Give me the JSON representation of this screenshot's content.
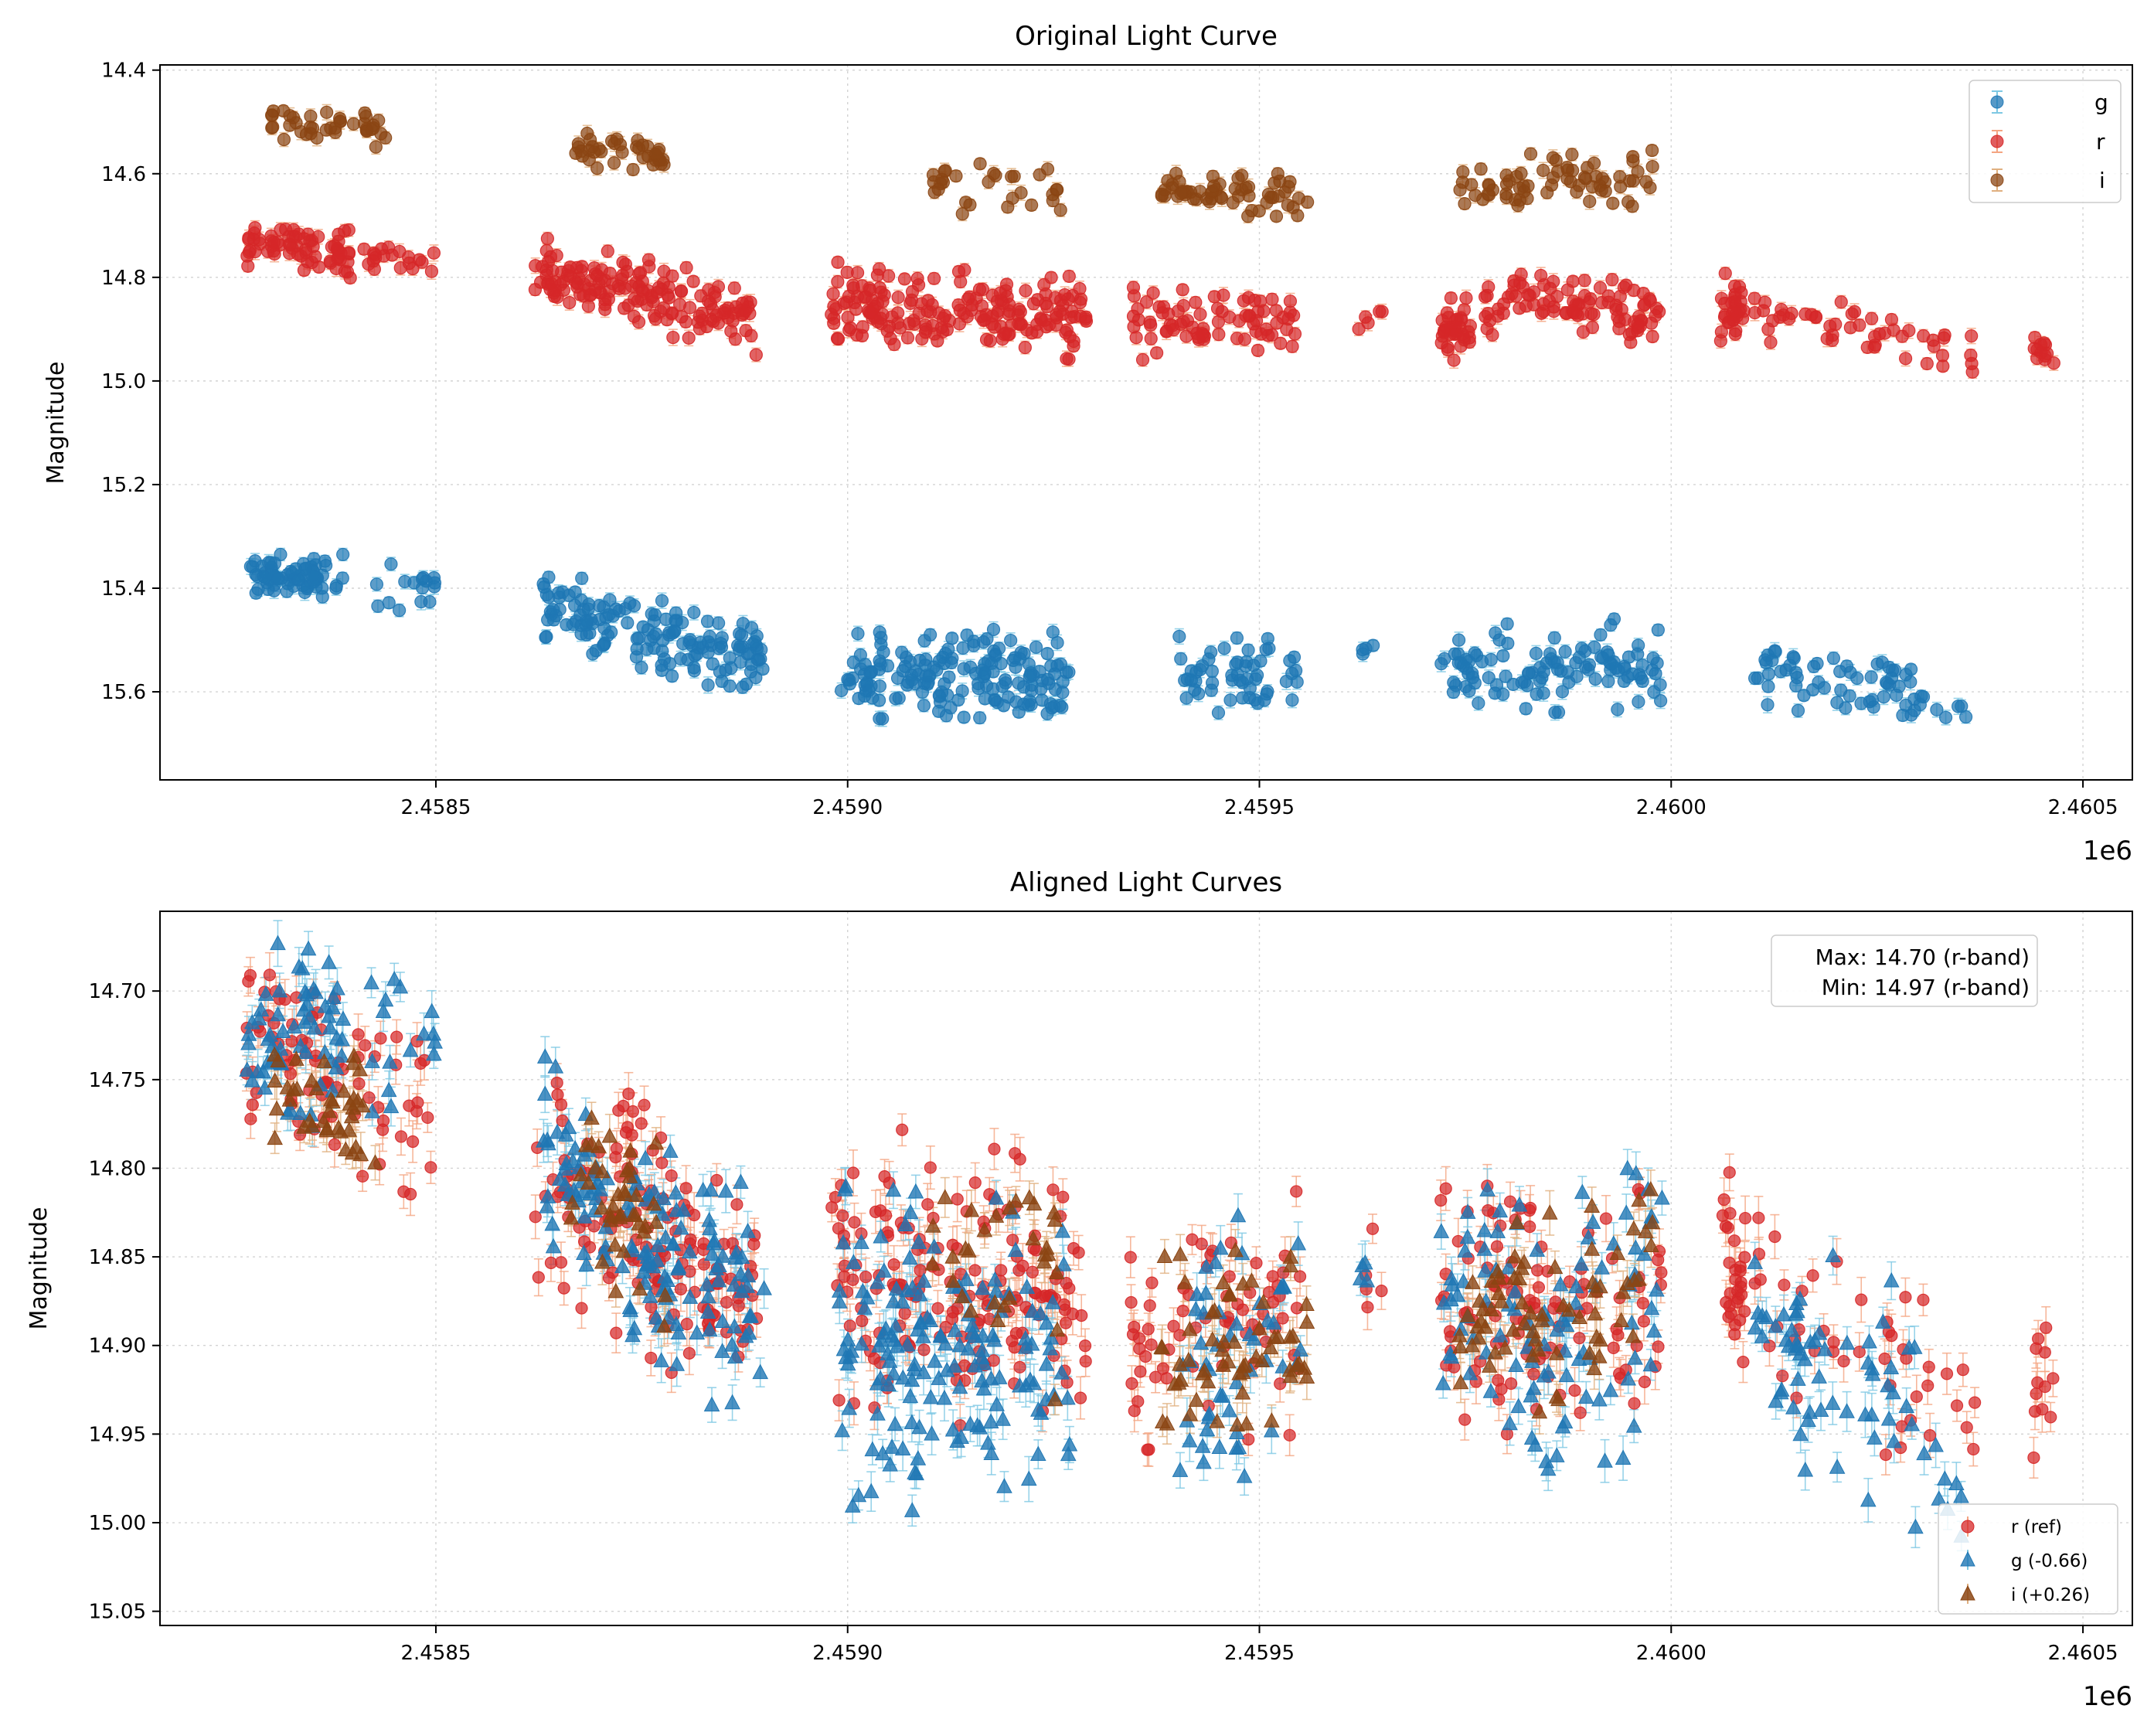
{
  "chart_data": [
    {
      "type": "scatter",
      "title": "Original Light Curve",
      "xlabel": "",
      "ylabel": "Magnitude",
      "x_offset_label": "1e6",
      "xlim": [
        2458165,
        2460560
      ],
      "ylim": [
        15.77,
        14.39
      ],
      "y_inverted": true,
      "x_ticks": [
        2458500,
        2459000,
        2459500,
        2460000,
        2460500
      ],
      "x_tick_labels": [
        "2.4585",
        "2.4590",
        "2.4595",
        "2.4600",
        "2.4605"
      ],
      "y_ticks": [
        14.4,
        14.6,
        14.8,
        15.0,
        15.2,
        15.4,
        15.6
      ],
      "y_tick_labels": [
        "14.4",
        "14.6",
        "14.8",
        "15.0",
        "15.2",
        "15.4",
        "15.6"
      ],
      "grid": true,
      "legend_position": "top-right",
      "legend": [
        "g",
        "r",
        "i"
      ],
      "series": [
        {
          "name": "g",
          "color": "#1f77b4",
          "marker": "circle",
          "segments": [
            {
              "x_start": 2458270,
              "x_end": 2458390,
              "y_start": 15.38,
              "y_end": 15.38,
              "spread": 0.045,
              "n": 70
            },
            {
              "x_start": 2458420,
              "x_end": 2458500,
              "y_start": 15.39,
              "y_end": 15.4,
              "spread": 0.05,
              "n": 16
            },
            {
              "x_start": 2458630,
              "x_end": 2458900,
              "y_start": 15.43,
              "y_end": 15.55,
              "spread": 0.07,
              "n": 150
            },
            {
              "x_start": 2458990,
              "x_end": 2459270,
              "y_start": 15.56,
              "y_end": 15.57,
              "spread": 0.09,
              "n": 170
            },
            {
              "x_start": 2459400,
              "x_end": 2459550,
              "y_start": 15.57,
              "y_end": 15.56,
              "spread": 0.08,
              "n": 55
            },
            {
              "x_start": 2459620,
              "x_end": 2459640,
              "y_start": 15.51,
              "y_end": 15.52,
              "spread": 0.03,
              "n": 4
            },
            {
              "x_start": 2459720,
              "x_end": 2459990,
              "y_start": 15.56,
              "y_end": 15.54,
              "spread": 0.09,
              "n": 110
            },
            {
              "x_start": 2460100,
              "x_end": 2460300,
              "y_start": 15.56,
              "y_end": 15.6,
              "spread": 0.07,
              "n": 60
            },
            {
              "x_start": 2460300,
              "x_end": 2460360,
              "y_start": 15.62,
              "y_end": 15.65,
              "spread": 0.04,
              "n": 8
            }
          ]
        },
        {
          "name": "r",
          "color": "#d62728",
          "marker": "circle",
          "segments": [
            {
              "x_start": 2458270,
              "x_end": 2458400,
              "y_start": 14.73,
              "y_end": 14.76,
              "spread": 0.05,
              "n": 70
            },
            {
              "x_start": 2458410,
              "x_end": 2458500,
              "y_start": 14.76,
              "y_end": 14.78,
              "spread": 0.04,
              "n": 20
            },
            {
              "x_start": 2458620,
              "x_end": 2458890,
              "y_start": 14.79,
              "y_end": 14.88,
              "spread": 0.07,
              "n": 160
            },
            {
              "x_start": 2458980,
              "x_end": 2459290,
              "y_start": 14.85,
              "y_end": 14.88,
              "spread": 0.08,
              "n": 190
            },
            {
              "x_start": 2459340,
              "x_end": 2459550,
              "y_start": 14.89,
              "y_end": 14.88,
              "spread": 0.07,
              "n": 80
            },
            {
              "x_start": 2459620,
              "x_end": 2459650,
              "y_start": 14.87,
              "y_end": 14.86,
              "spread": 0.03,
              "n": 5
            },
            {
              "x_start": 2459720,
              "x_end": 2459760,
              "y_start": 14.9,
              "y_end": 14.9,
              "spread": 0.06,
              "n": 35
            },
            {
              "x_start": 2459770,
              "x_end": 2459990,
              "y_start": 14.85,
              "y_end": 14.87,
              "spread": 0.06,
              "n": 95
            },
            {
              "x_start": 2460060,
              "x_end": 2460090,
              "y_start": 14.86,
              "y_end": 14.86,
              "spread": 0.07,
              "n": 30
            },
            {
              "x_start": 2460100,
              "x_end": 2460370,
              "y_start": 14.87,
              "y_end": 14.94,
              "spread": 0.05,
              "n": 50
            },
            {
              "x_start": 2460440,
              "x_end": 2460465,
              "y_start": 14.93,
              "y_end": 14.93,
              "spread": 0.04,
              "n": 12
            }
          ]
        },
        {
          "name": "i",
          "color": "#8b4513",
          "marker": "circle",
          "segments": [
            {
              "x_start": 2458300,
              "x_end": 2458440,
              "y_start": 14.5,
              "y_end": 14.52,
              "spread": 0.04,
              "n": 40
            },
            {
              "x_start": 2458660,
              "x_end": 2458780,
              "y_start": 14.54,
              "y_end": 14.58,
              "spread": 0.05,
              "n": 40
            },
            {
              "x_start": 2459100,
              "x_end": 2459260,
              "y_start": 14.61,
              "y_end": 14.6,
              "spread": 0.07,
              "n": 30
            },
            {
              "x_start": 2459380,
              "x_end": 2459560,
              "y_start": 14.64,
              "y_end": 14.63,
              "spread": 0.05,
              "n": 60
            },
            {
              "x_start": 2459740,
              "x_end": 2459980,
              "y_start": 14.63,
              "y_end": 14.6,
              "spread": 0.06,
              "n": 70
            }
          ]
        }
      ]
    },
    {
      "type": "scatter",
      "title": "Aligned Light Curves",
      "xlabel": "",
      "ylabel": "Magnitude",
      "x_offset_label": "1e6",
      "xlim": [
        2458165,
        2460560
      ],
      "ylim": [
        15.058,
        14.655
      ],
      "y_inverted": true,
      "x_ticks": [
        2458500,
        2459000,
        2459500,
        2460000,
        2460500
      ],
      "x_tick_labels": [
        "2.4585",
        "2.4590",
        "2.4595",
        "2.4600",
        "2.4605"
      ],
      "y_ticks": [
        14.7,
        14.75,
        14.8,
        14.85,
        14.9,
        14.95,
        15.0,
        15.05
      ],
      "y_tick_labels": [
        "14.70",
        "14.75",
        "14.80",
        "14.85",
        "14.90",
        "14.95",
        "15.00",
        "15.05"
      ],
      "grid": true,
      "legend_position": "bottom-right",
      "legend": [
        "r (ref)",
        "g (-0.66)",
        "i (+0.26)"
      ],
      "annotation": {
        "position": "top-right",
        "line1": "Max: 14.70 (r-band)",
        "line2": "Min: 14.97 (r-band)"
      },
      "series": [
        {
          "name": "r (ref)",
          "color": "#d62728",
          "err_color": "#f4a582",
          "marker": "circle",
          "segments": [
            {
              "x_start": 2458270,
              "x_end": 2458500,
              "y_start": 14.73,
              "y_end": 14.77,
              "spread": 0.05,
              "n": 80
            },
            {
              "x_start": 2458620,
              "x_end": 2458890,
              "y_start": 14.79,
              "y_end": 14.88,
              "spread": 0.07,
              "n": 150
            },
            {
              "x_start": 2458980,
              "x_end": 2459290,
              "y_start": 14.85,
              "y_end": 14.88,
              "spread": 0.08,
              "n": 170
            },
            {
              "x_start": 2459340,
              "x_end": 2459550,
              "y_start": 14.89,
              "y_end": 14.88,
              "spread": 0.07,
              "n": 70
            },
            {
              "x_start": 2459620,
              "x_end": 2459650,
              "y_start": 14.87,
              "y_end": 14.86,
              "spread": 0.03,
              "n": 5
            },
            {
              "x_start": 2459720,
              "x_end": 2459990,
              "y_start": 14.88,
              "y_end": 14.88,
              "spread": 0.07,
              "n": 110
            },
            {
              "x_start": 2460060,
              "x_end": 2460090,
              "y_start": 14.86,
              "y_end": 14.86,
              "spread": 0.07,
              "n": 30
            },
            {
              "x_start": 2460100,
              "x_end": 2460370,
              "y_start": 14.87,
              "y_end": 14.94,
              "spread": 0.05,
              "n": 45
            },
            {
              "x_start": 2460440,
              "x_end": 2460465,
              "y_start": 14.93,
              "y_end": 14.93,
              "spread": 0.04,
              "n": 12
            }
          ]
        },
        {
          "name": "g (-0.66)",
          "color": "#1f77b4",
          "err_color": "#7ec8e3",
          "marker": "triangle",
          "segments": [
            {
              "x_start": 2458270,
              "x_end": 2458390,
              "y_start": 14.72,
              "y_end": 14.73,
              "spread": 0.05,
              "n": 60
            },
            {
              "x_start": 2458420,
              "x_end": 2458500,
              "y_start": 14.73,
              "y_end": 14.74,
              "spread": 0.06,
              "n": 16
            },
            {
              "x_start": 2458630,
              "x_end": 2458900,
              "y_start": 14.78,
              "y_end": 14.89,
              "spread": 0.07,
              "n": 140
            },
            {
              "x_start": 2458990,
              "x_end": 2459270,
              "y_start": 14.9,
              "y_end": 14.91,
              "spread": 0.09,
              "n": 160
            },
            {
              "x_start": 2459400,
              "x_end": 2459550,
              "y_start": 14.91,
              "y_end": 14.9,
              "spread": 0.08,
              "n": 50
            },
            {
              "x_start": 2459620,
              "x_end": 2459640,
              "y_start": 14.85,
              "y_end": 14.86,
              "spread": 0.03,
              "n": 4
            },
            {
              "x_start": 2459720,
              "x_end": 2459990,
              "y_start": 14.89,
              "y_end": 14.87,
              "spread": 0.09,
              "n": 100
            },
            {
              "x_start": 2460100,
              "x_end": 2460300,
              "y_start": 14.9,
              "y_end": 14.94,
              "spread": 0.07,
              "n": 60
            },
            {
              "x_start": 2460300,
              "x_end": 2460360,
              "y_start": 14.96,
              "y_end": 14.99,
              "spread": 0.04,
              "n": 8
            }
          ]
        },
        {
          "name": "i (+0.26)",
          "color": "#8b4513",
          "err_color": "#e0b080",
          "marker": "triangle",
          "segments": [
            {
              "x_start": 2458300,
              "x_end": 2458440,
              "y_start": 14.76,
              "y_end": 14.78,
              "spread": 0.04,
              "n": 40
            },
            {
              "x_start": 2458660,
              "x_end": 2458780,
              "y_start": 14.8,
              "y_end": 14.84,
              "spread": 0.05,
              "n": 40
            },
            {
              "x_start": 2459100,
              "x_end": 2459260,
              "y_start": 14.87,
              "y_end": 14.86,
              "spread": 0.07,
              "n": 30
            },
            {
              "x_start": 2459380,
              "x_end": 2459560,
              "y_start": 14.9,
              "y_end": 14.89,
              "spread": 0.05,
              "n": 60
            },
            {
              "x_start": 2459740,
              "x_end": 2459980,
              "y_start": 14.89,
              "y_end": 14.86,
              "spread": 0.06,
              "n": 70
            }
          ]
        }
      ]
    }
  ]
}
